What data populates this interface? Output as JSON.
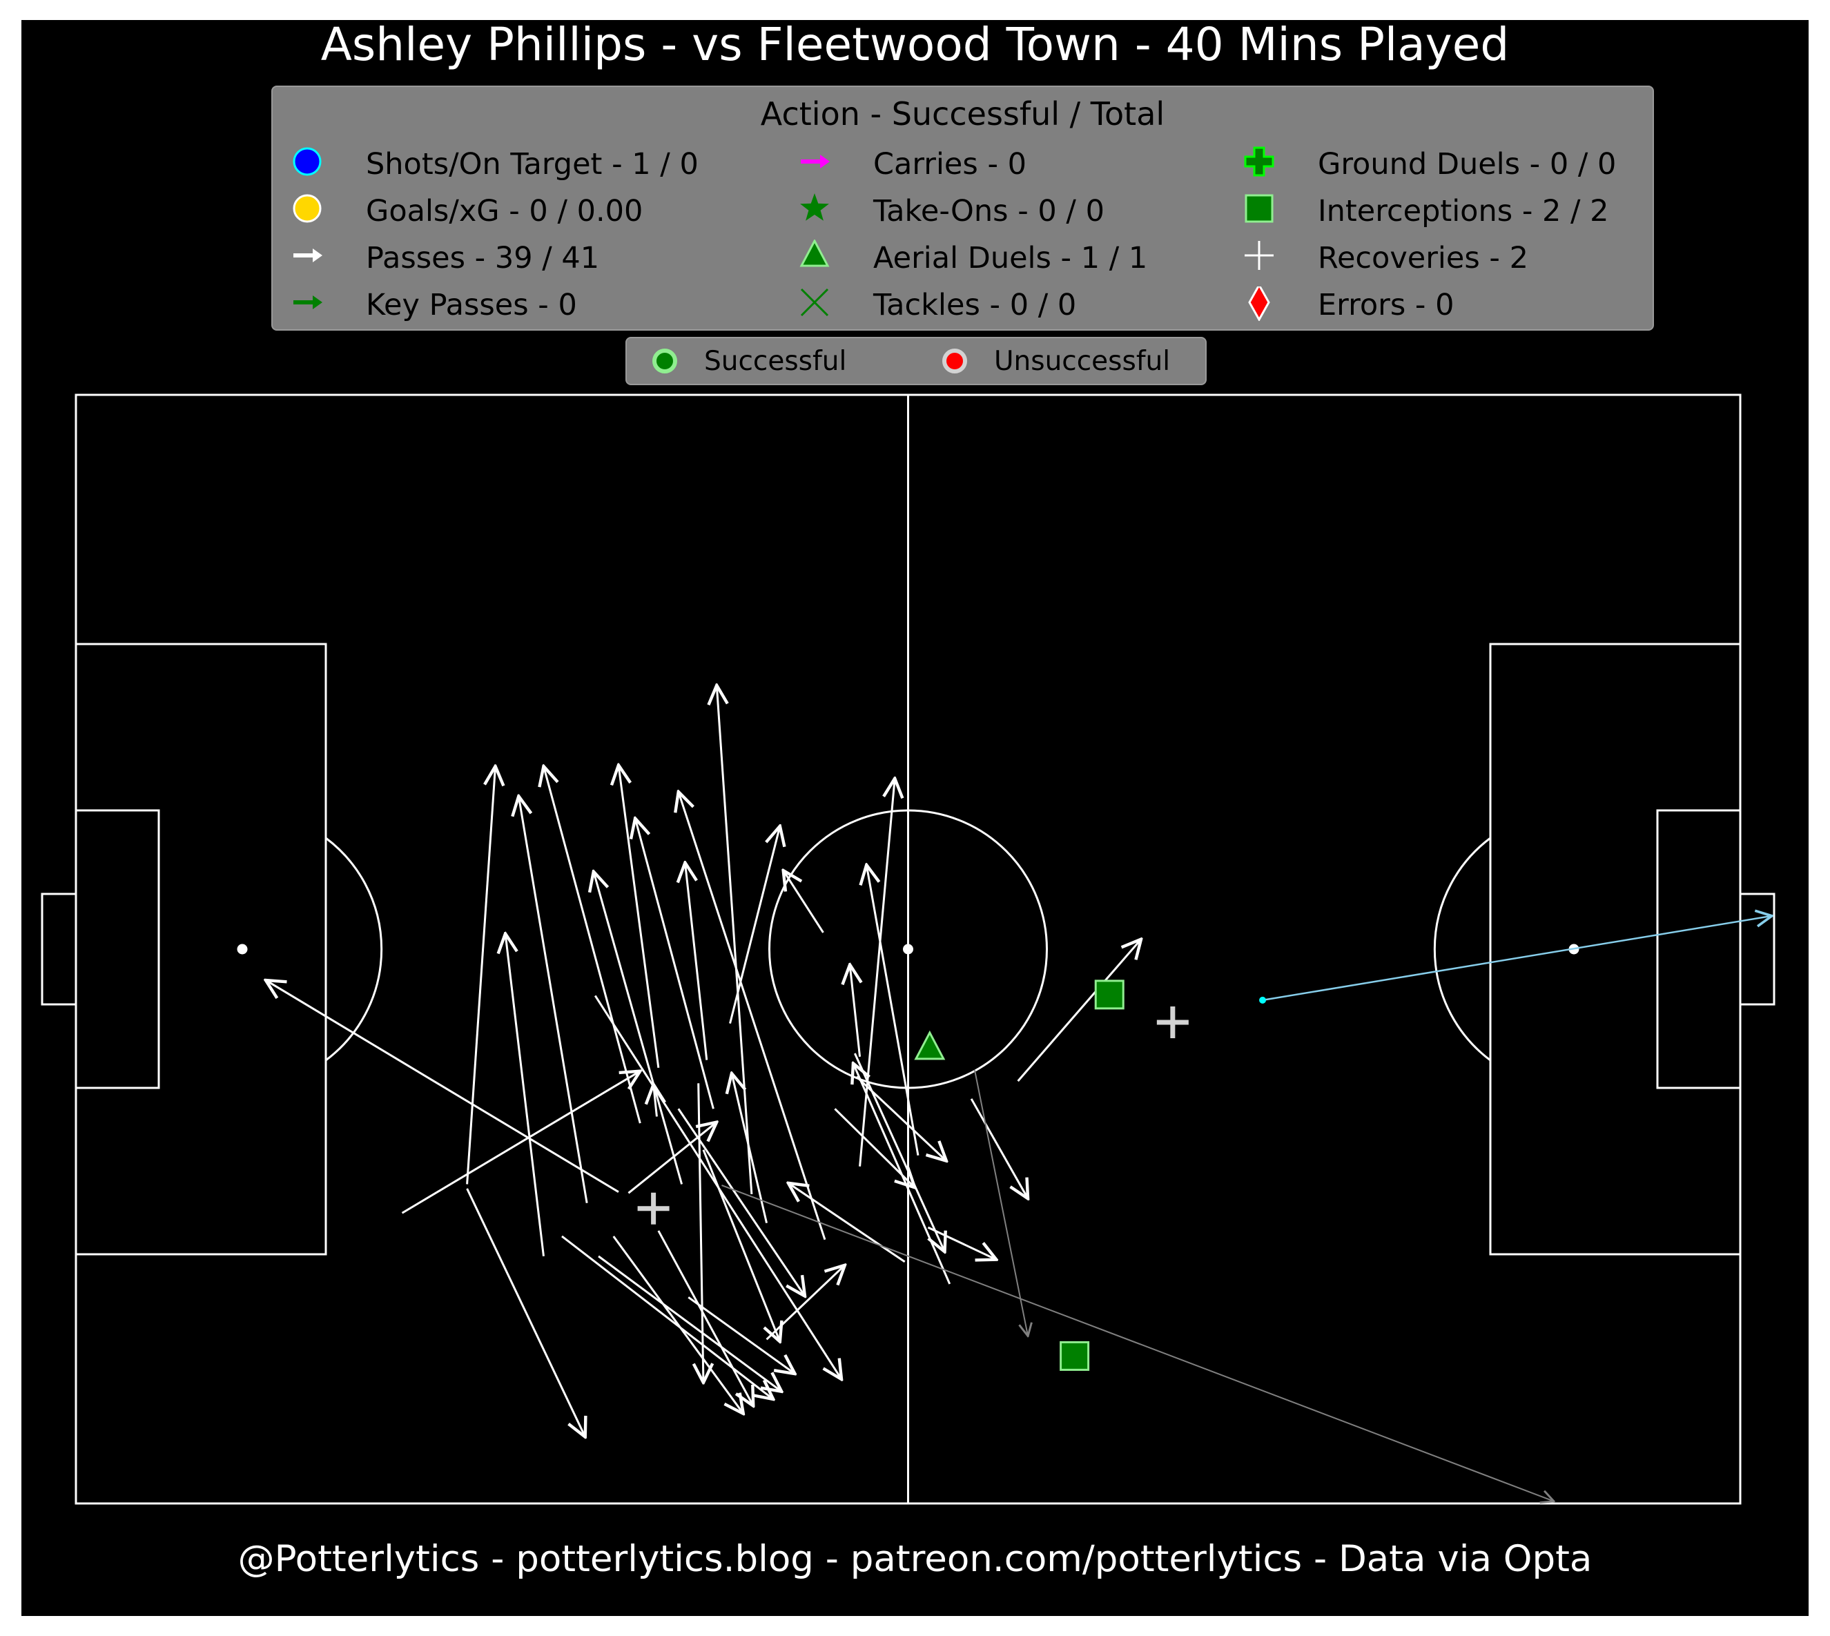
{
  "chart_data": {
    "type": "scatter",
    "title": "Ashley Phillips - vs Fleetwood Town - 40 Mins Played",
    "footer": "@Potterlytics - potterlytics.blog - patreon.com/potterlytics - Data via Opta",
    "pitch": {
      "x_range": [
        0,
        100
      ],
      "y_range": [
        0,
        100
      ],
      "attack_direction": "left-to-right"
    },
    "legend": {
      "title": "Action - Successful / Total",
      "items": [
        {
          "label": "Shots/On Target - 1 / 0",
          "marker": "circle",
          "color": "#0000ff",
          "edge": "#00ffff"
        },
        {
          "label": "Goals/xG - 0 / 0.00",
          "marker": "circle",
          "color": "#ffd700",
          "edge": "#ffffff"
        },
        {
          "label": "Passes - 39 / 41",
          "marker": "arrow",
          "color": "#ffffff"
        },
        {
          "label": "Key Passes - 0",
          "marker": "arrow",
          "color": "#008000"
        },
        {
          "label": "Carries - 0",
          "marker": "arrow",
          "color": "#ff00ff"
        },
        {
          "label": "Take-Ons - 0 / 0",
          "marker": "star",
          "color": "#008000"
        },
        {
          "label": "Aerial Duels - 1 / 1",
          "marker": "triangle",
          "color": "#008000",
          "edge": "#90ee90"
        },
        {
          "label": "Tackles - 0 / 0",
          "marker": "x",
          "color": "#008000"
        },
        {
          "label": "Ground Duels - 0 / 0",
          "marker": "plus-filled",
          "color": "#008000",
          "edge": "#00ff00"
        },
        {
          "label": "Interceptions - 2 / 2",
          "marker": "square",
          "color": "#008000",
          "edge": "#90ee90"
        },
        {
          "label": "Recoveries - 2",
          "marker": "plus",
          "color": "#ffffff"
        },
        {
          "label": "Errors - 0",
          "marker": "diamond",
          "color": "#ff0000",
          "edge": "#ffffff"
        }
      ]
    },
    "outcome_legend": {
      "items": [
        {
          "label": "Successful",
          "fill": "#008000",
          "edge": "#90ee90"
        },
        {
          "label": "Unsuccessful",
          "fill": "#ff0000",
          "edge": "#d3d3d3"
        }
      ]
    },
    "colors": {
      "successful_pass": "#ffffff",
      "unsuccessful_pass": "#808080",
      "shot": "#87ceeb",
      "shot_point": "#00ffff"
    },
    "passes": [
      {
        "x1": 23.5,
        "y1": 28.8,
        "x2": 25.2,
        "y2": 66.5,
        "successful": true
      },
      {
        "x1": 23.5,
        "y1": 28.4,
        "x2": 30.6,
        "y2": 6.0,
        "successful": true
      },
      {
        "x1": 28.1,
        "y1": 22.3,
        "x2": 25.8,
        "y2": 51.4,
        "successful": true
      },
      {
        "x1": 19.6,
        "y1": 26.2,
        "x2": 33.9,
        "y2": 39.0,
        "successful": true
      },
      {
        "x1": 31.2,
        "y1": 45.8,
        "x2": 46.0,
        "y2": 11.2,
        "successful": true
      },
      {
        "x1": 32.6,
        "y1": 28.1,
        "x2": 11.4,
        "y2": 47.2,
        "successful": true
      },
      {
        "x1": 31.4,
        "y1": 22.3,
        "x2": 42.4,
        "y2": 10.1,
        "successful": true
      },
      {
        "x1": 32.3,
        "y1": 24.1,
        "x2": 40.1,
        "y2": 8.1,
        "successful": true
      },
      {
        "x1": 30.7,
        "y1": 27.1,
        "x2": 26.6,
        "y2": 63.8,
        "successful": true
      },
      {
        "x1": 29.2,
        "y1": 24.1,
        "x2": 41.9,
        "y2": 9.4,
        "successful": true
      },
      {
        "x1": 35.0,
        "y1": 24.6,
        "x2": 40.7,
        "y2": 8.8,
        "successful": true
      },
      {
        "x1": 36.2,
        "y1": 35.6,
        "x2": 43.8,
        "y2": 18.7,
        "successful": true
      },
      {
        "x1": 35.0,
        "y1": 39.3,
        "x2": 32.6,
        "y2": 66.6,
        "successful": true
      },
      {
        "x1": 33.9,
        "y1": 34.3,
        "x2": 28.1,
        "y2": 66.5,
        "successful": true
      },
      {
        "x1": 36.4,
        "y1": 28.8,
        "x2": 31.1,
        "y2": 57.0,
        "successful": true
      },
      {
        "x1": 38.3,
        "y1": 35.6,
        "x2": 33.6,
        "y2": 61.8,
        "successful": true
      },
      {
        "x1": 40.6,
        "y1": 27.9,
        "x2": 38.5,
        "y2": 73.8,
        "successful": true
      },
      {
        "x1": 37.9,
        "y1": 40.0,
        "x2": 36.6,
        "y2": 57.8,
        "successful": true
      },
      {
        "x1": 39.3,
        "y1": 43.3,
        "x2": 42.3,
        "y2": 61.1,
        "successful": true
      },
      {
        "x1": 41.5,
        "y1": 25.3,
        "x2": 39.4,
        "y2": 38.8,
        "successful": true
      },
      {
        "x1": 36.8,
        "y1": 18.6,
        "x2": 43.2,
        "y2": 11.7,
        "successful": true
      },
      {
        "x1": 33.2,
        "y1": 28.0,
        "x2": 38.5,
        "y2": 34.4,
        "successful": true
      },
      {
        "x1": 34.9,
        "y1": 34.9,
        "x2": 34.7,
        "y2": 37.8,
        "successful": true
      },
      {
        "x1": 37.4,
        "y1": 37.9,
        "x2": 37.7,
        "y2": 10.9,
        "successful": true
      },
      {
        "x1": 37.7,
        "y1": 31.9,
        "x2": 42.3,
        "y2": 14.6,
        "successful": true
      },
      {
        "x1": 44.9,
        "y1": 51.5,
        "x2": 42.5,
        "y2": 57.1,
        "successful": true
      },
      {
        "x1": 47.1,
        "y1": 30.4,
        "x2": 49.2,
        "y2": 65.4,
        "successful": true
      },
      {
        "x1": 45.0,
        "y1": 23.8,
        "x2": 36.2,
        "y2": 64.2,
        "successful": true
      },
      {
        "x1": 46.8,
        "y1": 40.6,
        "x2": 52.2,
        "y2": 22.7,
        "successful": true
      },
      {
        "x1": 41.5,
        "y1": 14.8,
        "x2": 46.2,
        "y2": 21.5,
        "successful": true
      },
      {
        "x1": 45.6,
        "y1": 35.6,
        "x2": 50.4,
        "y2": 28.5,
        "successful": true
      },
      {
        "x1": 47.1,
        "y1": 40.3,
        "x2": 46.5,
        "y2": 48.6,
        "successful": true
      },
      {
        "x1": 46.9,
        "y1": 38.5,
        "x2": 52.3,
        "y2": 30.9,
        "successful": true
      },
      {
        "x1": 50.6,
        "y1": 31.4,
        "x2": 47.5,
        "y2": 57.6,
        "successful": true
      },
      {
        "x1": 49.8,
        "y1": 21.8,
        "x2": 42.8,
        "y2": 28.9,
        "successful": true
      },
      {
        "x1": 52.5,
        "y1": 19.8,
        "x2": 46.7,
        "y2": 39.7,
        "successful": true
      },
      {
        "x1": 53.8,
        "y1": 36.5,
        "x2": 57.2,
        "y2": 27.5,
        "successful": true
      },
      {
        "x1": 51.2,
        "y1": 24.9,
        "x2": 55.3,
        "y2": 22.0,
        "successful": true
      },
      {
        "x1": 56.6,
        "y1": 38.1,
        "x2": 64.0,
        "y2": 50.9,
        "successful": true
      },
      {
        "x1": 38.8,
        "y1": 28.7,
        "x2": 88.8,
        "y2": 0.2,
        "successful": false
      },
      {
        "x1": 54.0,
        "y1": 39.1,
        "x2": 57.2,
        "y2": 15.1,
        "successful": false
      }
    ],
    "shots": [
      {
        "x": 71.3,
        "y": 45.4,
        "x_end": 101.9,
        "y_end": 53.0,
        "on_target": false,
        "goal": false
      }
    ],
    "aerial_duels": [
      {
        "x": 51.3,
        "y": 41.1,
        "successful": true
      }
    ],
    "interceptions": [
      {
        "x": 62.1,
        "y": 45.9,
        "successful": true
      },
      {
        "x": 60.0,
        "y": 13.3,
        "successful": true
      }
    ],
    "recoveries": [
      {
        "x": 65.9,
        "y": 43.4
      },
      {
        "x": 34.7,
        "y": 26.6
      }
    ]
  }
}
